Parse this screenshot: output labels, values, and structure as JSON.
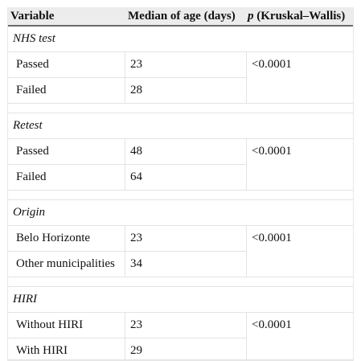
{
  "header": {
    "variable": "Variable",
    "median": "Median of age (days)",
    "p_italic": "p",
    "p_rest": " (Kruskal–Wallis)"
  },
  "groups": [
    {
      "title": "NHS test",
      "rows": [
        {
          "name": "Passed",
          "median": "23"
        },
        {
          "name": "Failed",
          "median": "28"
        }
      ],
      "p": "<0.0001"
    },
    {
      "title": "Retest",
      "rows": [
        {
          "name": "Passed",
          "median": "48"
        },
        {
          "name": "Failed",
          "median": "64"
        }
      ],
      "p": "<0.0001"
    },
    {
      "title": "Origin",
      "rows": [
        {
          "name": "Belo Horizonte",
          "median": "23"
        },
        {
          "name": "Other municipalities",
          "median": "34"
        }
      ],
      "p": "<0.0001"
    },
    {
      "title": "HIRI",
      "rows": [
        {
          "name": "Without HIRI",
          "median": "23"
        },
        {
          "name": "With HIRI",
          "median": "29"
        }
      ],
      "p": "<0.0001"
    }
  ]
}
